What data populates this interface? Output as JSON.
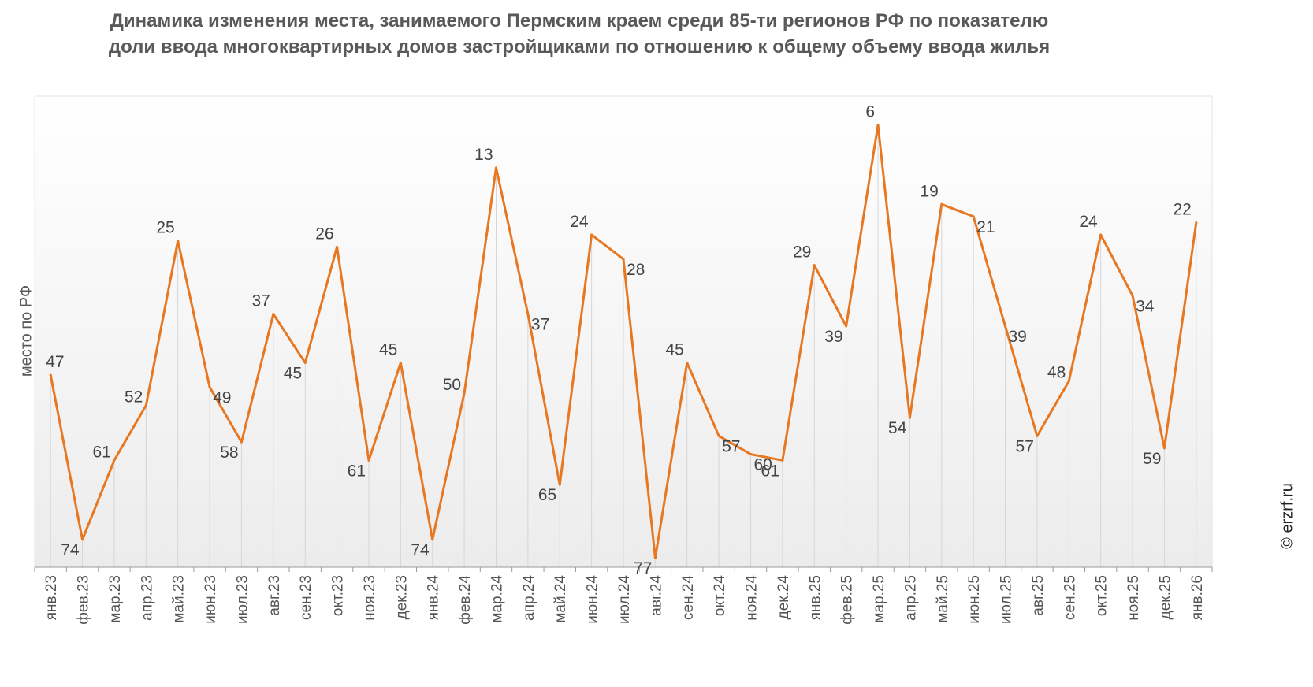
{
  "chart_data": {
    "type": "line",
    "title": "Динамика изменения места, занимаемого Пермским краем среди 85-ти регионов РФ по показателю доли ввода многоквартирных домов застройщиками по отношению к общему объему ввода жилья",
    "xlabel": "",
    "ylabel": "место по РФ",
    "y_inverted": true,
    "ylim": [
      85,
      1
    ],
    "grid": "vertical lines only",
    "categories": [
      "янв.23",
      "фев.23",
      "мар.23",
      "апр.23",
      "май.23",
      "июн.23",
      "июл.23",
      "авг.23",
      "сен.23",
      "окт.23",
      "ноя.23",
      "дек.23",
      "янв.24",
      "фев.24",
      "мар.24",
      "апр.24",
      "май.24",
      "июн.24",
      "июл.24",
      "авг.24",
      "сен.24",
      "окт.24",
      "ноя.24",
      "дек.24",
      "янв.25",
      "фев.25",
      "мар.25",
      "апр.25",
      "май.25",
      "июн.25",
      "июл.25",
      "авг.25",
      "сен.25",
      "окт.25",
      "ноя.25",
      "дек.25",
      "янв.26"
    ],
    "series": [
      {
        "values": [
          47,
          74,
          61,
          52,
          25,
          49,
          58,
          37,
          45,
          26,
          61,
          45,
          74,
          50,
          13,
          37,
          65,
          24,
          28,
          77,
          45,
          57,
          60,
          61,
          29,
          39,
          6,
          54,
          19,
          21,
          39,
          57,
          48,
          24,
          34,
          59,
          22
        ],
        "color": "#E87722"
      }
    ]
  },
  "copyright": "© erzrf.ru"
}
